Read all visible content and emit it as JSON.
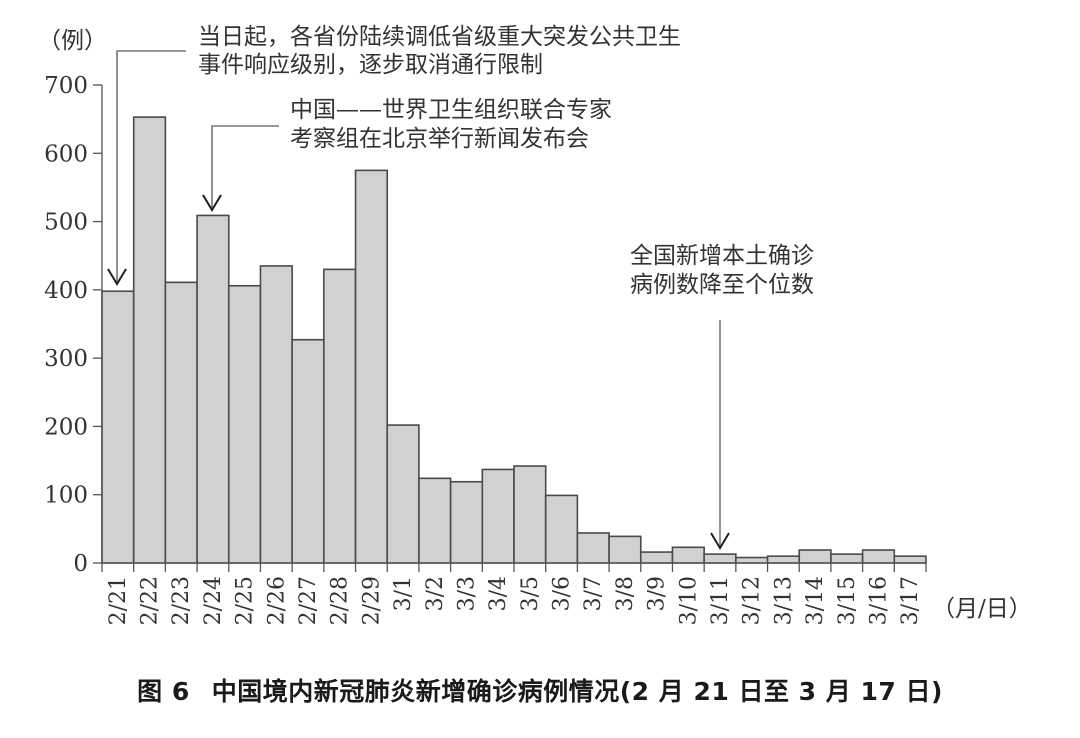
{
  "chart_data": {
    "type": "bar",
    "title": "中国境内新冠肺炎新增确诊病例情况（2月21日至3月17日）",
    "figure_label": "图 6",
    "xlabel": "（月/日）",
    "ylabel": "（例）",
    "ylim": [
      0,
      700
    ],
    "yticks": [
      0,
      100,
      200,
      300,
      400,
      500,
      600,
      700
    ],
    "grid": false,
    "legend": null,
    "bar_color": "#d1d1d3",
    "bar_edge_color": "#4a4a4a",
    "categories": [
      "2/21",
      "2/22",
      "2/23",
      "2/24",
      "2/25",
      "2/26",
      "2/27",
      "2/28",
      "2/29",
      "3/1",
      "3/2",
      "3/3",
      "3/4",
      "3/5",
      "3/6",
      "3/7",
      "3/8",
      "3/9",
      "3/10",
      "3/11",
      "3/12",
      "3/13",
      "3/14",
      "3/15",
      "3/16",
      "3/17"
    ],
    "values": [
      398,
      653,
      411,
      509,
      406,
      435,
      327,
      430,
      575,
      202,
      124,
      119,
      137,
      142,
      99,
      44,
      39,
      16,
      23,
      13,
      8,
      10,
      19,
      13,
      19,
      10
    ],
    "annotations": [
      {
        "target": "2/21",
        "lines": [
          "当日起，各省份陆续调低省级重大突发公共卫生",
          "事件响应级别，逐步取消通行限制"
        ]
      },
      {
        "target": "2/24",
        "lines": [
          "中国——世界卫生组织联合专家",
          "考察组在北京举行新闻发布会"
        ]
      },
      {
        "target": "3/11",
        "lines": [
          "全国新增本土确诊",
          "病例数降至个位数"
        ]
      }
    ]
  },
  "caption": {
    "figure_label": "图 6",
    "text": "中国境内新冠肺炎新增确诊病例情况(2 月 21 日至 3 月 17 日)"
  }
}
